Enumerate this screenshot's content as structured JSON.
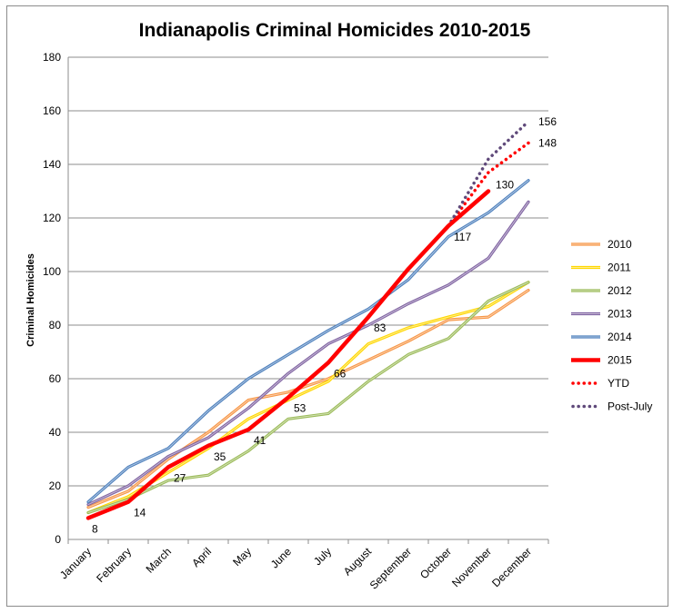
{
  "chart_data": {
    "type": "line",
    "title": "Indianapolis Criminal Homicides 2010-2015",
    "xlabel": "",
    "ylabel": "Criminal Homicides",
    "ylim": [
      0,
      180
    ],
    "yticks": [
      0,
      20,
      40,
      60,
      80,
      100,
      120,
      140,
      160,
      180
    ],
    "grid": "horizontal",
    "legend_position": "right",
    "categories": [
      "January",
      "February",
      "March",
      "April",
      "May",
      "June",
      "July",
      "August",
      "September",
      "October",
      "November",
      "December"
    ],
    "series": [
      {
        "name": "2010",
        "color": "#f79646",
        "style": "double",
        "values": [
          12,
          18,
          30,
          40,
          52,
          55,
          60,
          67,
          74,
          82,
          83,
          93
        ]
      },
      {
        "name": "2011",
        "color": "#ffd700",
        "style": "double",
        "values": [
          10,
          16,
          25,
          34,
          45,
          52,
          59,
          73,
          79,
          83,
          87,
          96
        ]
      },
      {
        "name": "2012",
        "color": "#9bbb59",
        "style": "double",
        "values": [
          10,
          15,
          22,
          24,
          33,
          45,
          47,
          59,
          69,
          75,
          89,
          96
        ]
      },
      {
        "name": "2013",
        "color": "#8064a2",
        "style": "double",
        "values": [
          13,
          20,
          31,
          38,
          49,
          62,
          73,
          80,
          88,
          95,
          105,
          126
        ]
      },
      {
        "name": "2014",
        "color": "#4f81bd",
        "style": "double",
        "values": [
          14,
          27,
          34,
          48,
          60,
          69,
          78,
          86,
          97,
          113,
          122,
          134
        ]
      },
      {
        "name": "2015",
        "color": "#ff0000",
        "style": "solid",
        "values": [
          8,
          14,
          27,
          35,
          41,
          53,
          66,
          83,
          101,
          117,
          130,
          null
        ]
      },
      {
        "name": "YTD",
        "color": "#ff0000",
        "style": "dotted",
        "values": [
          null,
          null,
          null,
          null,
          null,
          null,
          null,
          null,
          null,
          117,
          137,
          148
        ]
      },
      {
        "name": "Post-July",
        "color": "#5f497a",
        "style": "dotted",
        "values": [
          null,
          null,
          null,
          null,
          null,
          null,
          null,
          null,
          null,
          117,
          142,
          156
        ]
      }
    ],
    "data_labels": [
      {
        "series": "2015",
        "index": 0,
        "text": "8"
      },
      {
        "series": "2015",
        "index": 1,
        "text": "14"
      },
      {
        "series": "2015",
        "index": 2,
        "text": "27"
      },
      {
        "series": "2015",
        "index": 3,
        "text": "35"
      },
      {
        "series": "2015",
        "index": 4,
        "text": "41"
      },
      {
        "series": "2015",
        "index": 5,
        "text": "53"
      },
      {
        "series": "2015",
        "index": 6,
        "text": "66"
      },
      {
        "series": "2015",
        "index": 7,
        "text": "83"
      },
      {
        "series": "2015",
        "index": 9,
        "text": "117"
      },
      {
        "series": "2015",
        "index": 10,
        "text": "130"
      },
      {
        "series": "YTD",
        "index": 11,
        "text": "148"
      },
      {
        "series": "Post-July",
        "index": 11,
        "text": "156"
      }
    ]
  }
}
